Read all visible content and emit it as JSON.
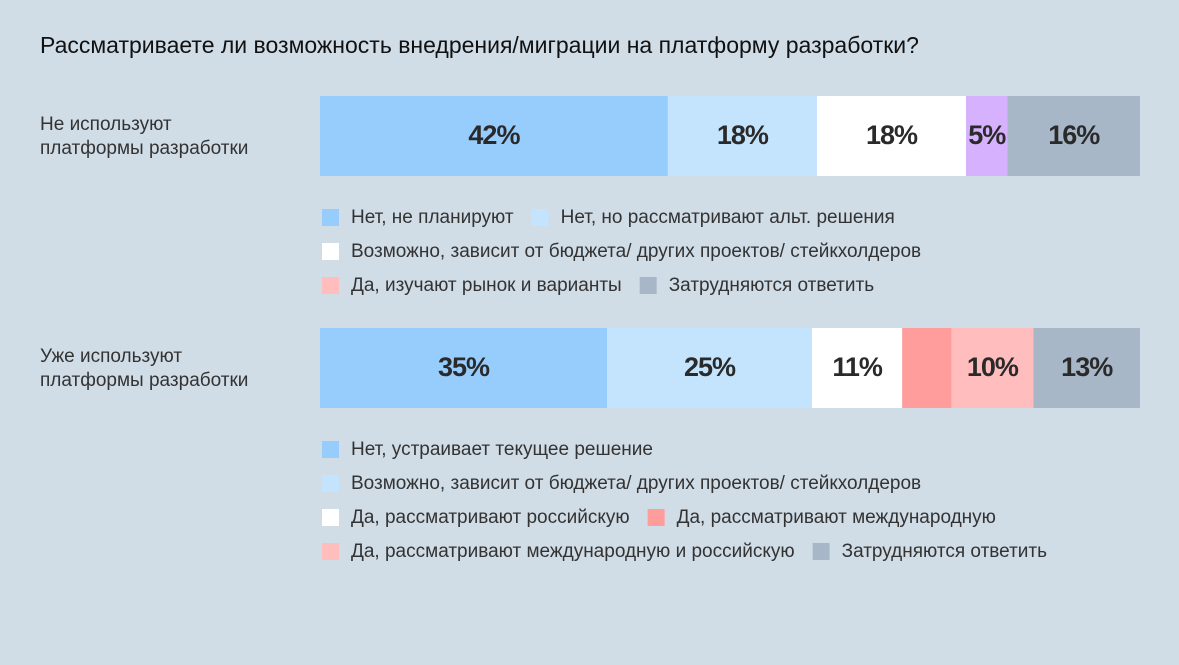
{
  "title": "Рассматриваете ли возможность внедрения/миграции на платформу разработки?",
  "chart_data": [
    {
      "type": "stacked-bar",
      "label": [
        "Не используют",
        "платформы разработки"
      ],
      "series": [
        {
          "name": "Нет, не планируют",
          "color": "#97cdfd",
          "values": [
            42
          ],
          "value_labels": [
            "42%"
          ]
        },
        {
          "name": "Нет, но рассматривают альт. решения",
          "color": "#c4e4fe",
          "values": [
            18
          ],
          "value_labels": [
            "18%"
          ]
        },
        {
          "name": "Возможно, зависит от бюджета/ других проектов/ стейкхолдеров",
          "color": "#ffffff",
          "values": [
            18
          ],
          "value_labels": [
            "18%"
          ]
        },
        {
          "name": "Да, изучают рынок и варианты",
          "color": "#d6b1fd",
          "legend_color": "#ffbdbd",
          "values": [
            5
          ],
          "value_labels": [
            "5%"
          ]
        },
        {
          "name": "Затрудняются ответить",
          "color": "#a8b7c8",
          "label_color": "#ffffff",
          "values": [
            16
          ],
          "value_labels": [
            "16%"
          ]
        }
      ]
    },
    {
      "type": "stacked-bar",
      "label": [
        "Уже используют",
        "платформы разработки"
      ],
      "series": [
        {
          "name": "Нет, устраивает текущее решение",
          "color": "#97cdfd",
          "values": [
            35
          ],
          "value_labels": [
            "35%"
          ]
        },
        {
          "name": "Возможно, зависит от бюджета/ других проектов/ стейкхолдеров",
          "color": "#c4e4fe",
          "values": [
            25
          ],
          "value_labels": [
            "25%"
          ]
        },
        {
          "name": "Да, рассматривают российскую",
          "color": "#ffffff",
          "values": [
            11
          ],
          "value_labels": [
            "11%"
          ]
        },
        {
          "name": "Да, рассматривают международную",
          "color": "#ff9c9c",
          "values": [
            6
          ]
        },
        {
          "name": "Да, рассматривают международную и российскую",
          "color": "#ffbdbd",
          "values": [
            10
          ],
          "value_labels": [
            "10%"
          ]
        },
        {
          "name": "Затрудняются ответить",
          "color": "#a8b7c8",
          "label_color": "#ffffff",
          "values": [
            13
          ],
          "value_labels": [
            "13%"
          ]
        }
      ]
    }
  ]
}
